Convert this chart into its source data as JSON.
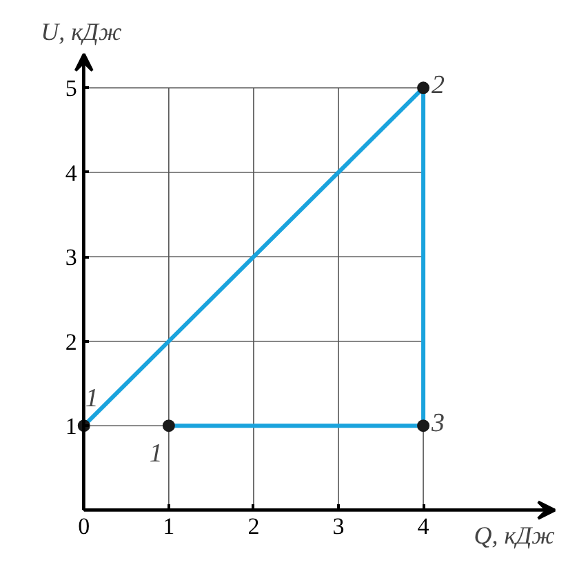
{
  "chart_data": {
    "type": "line",
    "xlabel": "Q, кДж",
    "ylabel": "U, кДж",
    "xlim": [
      0,
      5.55
    ],
    "ylim": [
      0,
      5.4
    ],
    "xticks": [
      0,
      1,
      2,
      3,
      4
    ],
    "yticks": [
      1,
      2,
      3,
      4,
      5
    ],
    "grid": true,
    "series": [
      {
        "color": "#1aa3dd",
        "x": [
          0,
          4,
          4,
          1
        ],
        "values": [
          1,
          5,
          1,
          1
        ]
      },
      {
        "type": "scatter",
        "color": "#1a1a1a",
        "x": [
          0,
          1,
          4,
          4
        ],
        "values": [
          1,
          1,
          5,
          1
        ],
        "marker": "circle"
      }
    ],
    "annotations": [
      {
        "text": "1",
        "x": 0,
        "y": 1
      },
      {
        "text": "1",
        "x": 1,
        "y": 1
      },
      {
        "text": "2",
        "x": 4,
        "y": 5
      },
      {
        "text": "3",
        "x": 4,
        "y": 1
      }
    ]
  }
}
